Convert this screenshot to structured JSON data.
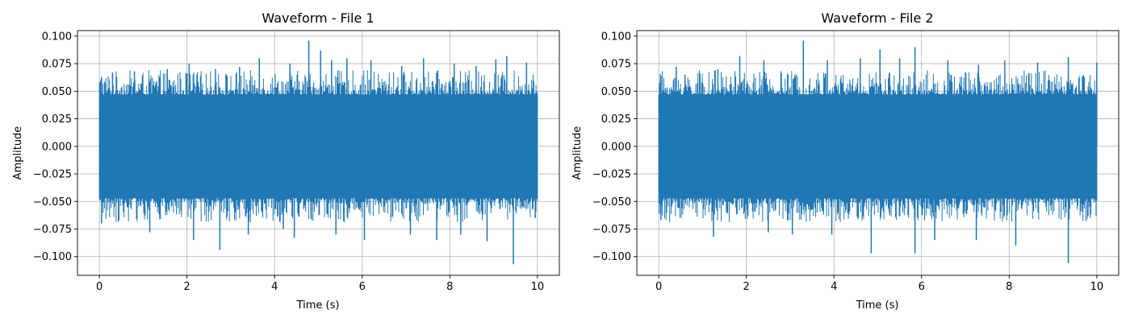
{
  "chart_data": [
    {
      "type": "line",
      "title": "Waveform - File 1",
      "xlabel": "Time (s)",
      "ylabel": "Amplitude",
      "xlim": [
        -0.5,
        10.5
      ],
      "ylim": [
        -0.117,
        0.105
      ],
      "xticks": [
        0,
        2,
        4,
        6,
        8,
        10
      ],
      "xtick_labels": [
        "0",
        "2",
        "4",
        "6",
        "8",
        "10"
      ],
      "yticks": [
        -0.1,
        -0.075,
        -0.05,
        -0.025,
        0.0,
        0.025,
        0.05,
        0.075,
        0.1
      ],
      "ytick_labels": [
        "−0.100",
        "−0.075",
        "−0.050",
        "−0.025",
        "0.000",
        "0.025",
        "0.050",
        "0.075",
        "0.100"
      ],
      "grid": true,
      "color": "#1f77b4",
      "series": [
        {
          "x_range": [
            0,
            10
          ],
          "noise_envelope": [
            -0.047,
            0.047
          ],
          "peaks": [
            {
              "x": 0.05,
              "y": 0.063
            },
            {
              "x": 0.3,
              "y": 0.067
            },
            {
              "x": 0.8,
              "y": 0.068
            },
            {
              "x": 1.55,
              "y": 0.07
            },
            {
              "x": 2.05,
              "y": 0.075
            },
            {
              "x": 2.65,
              "y": 0.07
            },
            {
              "x": 3.2,
              "y": 0.072
            },
            {
              "x": 3.65,
              "y": 0.08
            },
            {
              "x": 4.35,
              "y": 0.075
            },
            {
              "x": 4.78,
              "y": 0.096
            },
            {
              "x": 5.05,
              "y": 0.087
            },
            {
              "x": 5.3,
              "y": 0.078
            },
            {
              "x": 5.65,
              "y": 0.08
            },
            {
              "x": 6.2,
              "y": 0.078
            },
            {
              "x": 6.9,
              "y": 0.073
            },
            {
              "x": 7.4,
              "y": 0.08
            },
            {
              "x": 8.1,
              "y": 0.075
            },
            {
              "x": 8.6,
              "y": 0.073
            },
            {
              "x": 9.05,
              "y": 0.079
            },
            {
              "x": 9.3,
              "y": 0.082
            },
            {
              "x": 9.75,
              "y": 0.076
            }
          ],
          "troughs": [
            {
              "x": 0.05,
              "y": -0.07
            },
            {
              "x": 1.15,
              "y": -0.078
            },
            {
              "x": 2.15,
              "y": -0.085
            },
            {
              "x": 2.75,
              "y": -0.094
            },
            {
              "x": 3.4,
              "y": -0.08
            },
            {
              "x": 4.2,
              "y": -0.075
            },
            {
              "x": 4.45,
              "y": -0.083
            },
            {
              "x": 5.4,
              "y": -0.08
            },
            {
              "x": 6.05,
              "y": -0.085
            },
            {
              "x": 7.1,
              "y": -0.08
            },
            {
              "x": 7.7,
              "y": -0.085
            },
            {
              "x": 8.25,
              "y": -0.08
            },
            {
              "x": 8.85,
              "y": -0.086
            },
            {
              "x": 9.45,
              "y": -0.107
            },
            {
              "x": 9.95,
              "y": -0.065
            }
          ]
        }
      ]
    },
    {
      "type": "line",
      "title": "Waveform - File 2",
      "xlabel": "Time (s)",
      "ylabel": "Amplitude",
      "xlim": [
        -0.5,
        10.5
      ],
      "ylim": [
        -0.117,
        0.105
      ],
      "xticks": [
        0,
        2,
        4,
        6,
        8,
        10
      ],
      "xtick_labels": [
        "0",
        "2",
        "4",
        "6",
        "8",
        "10"
      ],
      "yticks": [
        -0.1,
        -0.075,
        -0.05,
        -0.025,
        0.0,
        0.025,
        0.05,
        0.075,
        0.1
      ],
      "ytick_labels": [
        "−0.100",
        "−0.075",
        "−0.050",
        "−0.025",
        "0.000",
        "0.025",
        "0.050",
        "0.075",
        "0.100"
      ],
      "grid": true,
      "color": "#1f77b4",
      "series": [
        {
          "x_range": [
            0,
            10
          ],
          "noise_envelope": [
            -0.047,
            0.047
          ],
          "peaks": [
            {
              "x": 0.05,
              "y": 0.064
            },
            {
              "x": 0.4,
              "y": 0.072
            },
            {
              "x": 0.6,
              "y": 0.065
            },
            {
              "x": 1.35,
              "y": 0.07
            },
            {
              "x": 1.85,
              "y": 0.082
            },
            {
              "x": 2.4,
              "y": 0.078
            },
            {
              "x": 3.3,
              "y": 0.096
            },
            {
              "x": 3.85,
              "y": 0.078
            },
            {
              "x": 4.6,
              "y": 0.08
            },
            {
              "x": 5.05,
              "y": 0.088
            },
            {
              "x": 5.5,
              "y": 0.08
            },
            {
              "x": 5.85,
              "y": 0.09
            },
            {
              "x": 6.6,
              "y": 0.078
            },
            {
              "x": 7.3,
              "y": 0.074
            },
            {
              "x": 7.9,
              "y": 0.078
            },
            {
              "x": 8.65,
              "y": 0.076
            },
            {
              "x": 9.35,
              "y": 0.081
            },
            {
              "x": 10.0,
              "y": 0.076
            }
          ],
          "troughs": [
            {
              "x": 0.05,
              "y": -0.067
            },
            {
              "x": 1.25,
              "y": -0.082
            },
            {
              "x": 2.5,
              "y": -0.078
            },
            {
              "x": 3.05,
              "y": -0.08
            },
            {
              "x": 3.95,
              "y": -0.08
            },
            {
              "x": 4.85,
              "y": -0.097
            },
            {
              "x": 5.85,
              "y": -0.097
            },
            {
              "x": 6.3,
              "y": -0.085
            },
            {
              "x": 7.25,
              "y": -0.085
            },
            {
              "x": 8.15,
              "y": -0.09
            },
            {
              "x": 9.35,
              "y": -0.106
            },
            {
              "x": 9.8,
              "y": -0.063
            }
          ]
        }
      ]
    }
  ]
}
